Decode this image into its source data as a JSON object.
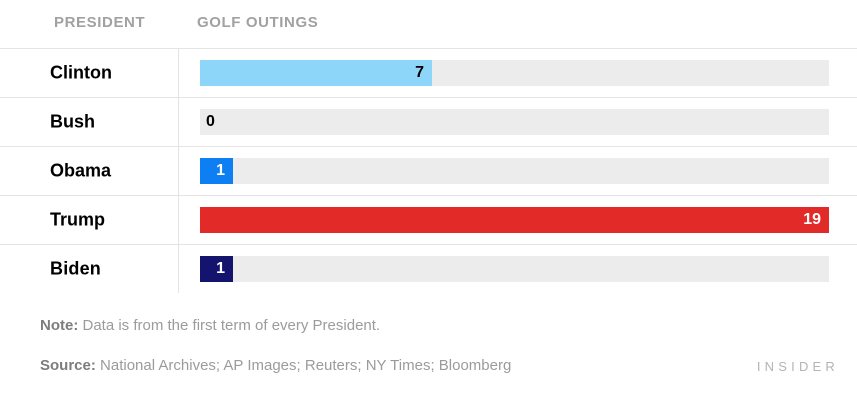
{
  "table": {
    "president_header": "PRESIDENT",
    "golf_outings_header": "GOLF OUTINGS"
  },
  "chart_data": {
    "type": "bar",
    "orientation": "horizontal",
    "categories": [
      "Clinton",
      "Bush",
      "Obama",
      "Trump",
      "Biden"
    ],
    "values": [
      7,
      0,
      1,
      19,
      1
    ],
    "xlim": [
      0,
      19
    ],
    "columns": [
      "PRESIDENT",
      "GOLF OUTINGS"
    ],
    "bar_colors": [
      "#8ed5fa",
      "#ececec",
      "#0d7ff2",
      "#e22a28",
      "#14146e"
    ],
    "value_text_colors": [
      "#000000",
      "#000000",
      "#ffffff",
      "#ffffff",
      "#ffffff"
    ],
    "track_color": "#ececec",
    "note": "Data is from the first term of every President.",
    "source": "National Archives; AP Images; Reuters; NY Times; Bloomberg"
  },
  "footer": {
    "note_label": "Note:",
    "note_text": " Data is from the first term of every President.",
    "source_label": "Source:",
    "source_text": " National Archives; AP Images; Reuters; NY Times; Bloomberg",
    "brand": "INSIDER"
  }
}
